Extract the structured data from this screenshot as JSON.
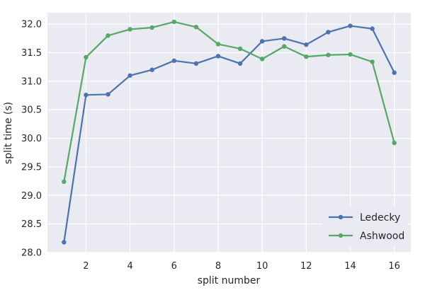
{
  "chart_data": {
    "type": "line",
    "title": "",
    "xlabel": "split number",
    "ylabel": "split time (s)",
    "xlim": [
      0.25,
      16.75
    ],
    "ylim": [
      28.0,
      32.2
    ],
    "xticks": [
      2,
      4,
      6,
      8,
      10,
      12,
      14,
      16
    ],
    "yticks": [
      28.0,
      28.5,
      29.0,
      29.5,
      30.0,
      30.5,
      31.0,
      31.5,
      32.0
    ],
    "grid": true,
    "legend": "lower-right",
    "x": [
      1,
      2,
      3,
      4,
      5,
      6,
      7,
      8,
      9,
      10,
      11,
      12,
      13,
      14,
      15,
      16
    ],
    "series": [
      {
        "name": "Ledecky",
        "color": "#4c72b0",
        "values": [
          28.18,
          30.76,
          30.77,
          31.1,
          31.2,
          31.36,
          31.31,
          31.44,
          31.31,
          31.7,
          31.75,
          31.64,
          31.86,
          31.97,
          31.92,
          31.15
        ]
      },
      {
        "name": "Ashwood",
        "color": "#55a868",
        "values": [
          29.24,
          31.42,
          31.8,
          31.91,
          31.94,
          32.04,
          31.95,
          31.65,
          31.57,
          31.39,
          31.61,
          31.43,
          31.46,
          31.47,
          31.34,
          29.92
        ]
      }
    ]
  }
}
